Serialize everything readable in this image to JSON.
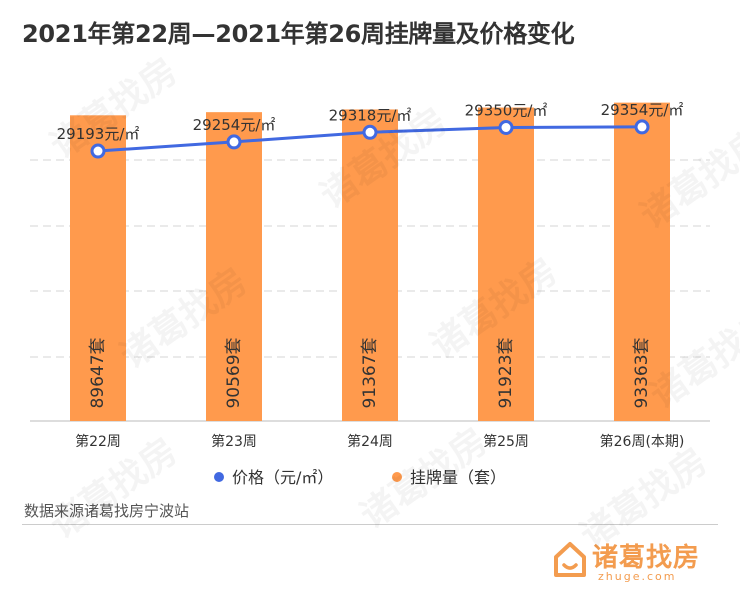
{
  "title": "2021年第22周—2021年第26周挂牌量及价格变化",
  "source": "数据来源诸葛找房宁波站",
  "logo": {
    "text": "诸葛找房",
    "sub": "zhuge.com"
  },
  "watermark": "诸葛找房",
  "colors": {
    "bar": "#ff9a4d",
    "line": "#4169e1",
    "grid": "#d0d0d0",
    "logo": "#f39c4f"
  },
  "chart_data": {
    "type": "bar",
    "title": "2021年第22周—2021年第26周挂牌量及价格变化",
    "categories": [
      "第22周",
      "第23周",
      "第24周",
      "第25周",
      "第26周(本期)"
    ],
    "series": [
      {
        "name": "价格（元/㎡）",
        "type": "line",
        "values": [
          29193,
          29254,
          29318,
          29350,
          29354
        ],
        "labels": [
          "29193元/㎡",
          "29254元/㎡",
          "29318元/㎡",
          "29350元/㎡",
          "29354元/㎡"
        ],
        "color": "#4169e1"
      },
      {
        "name": "挂牌量（套）",
        "type": "bar",
        "values": [
          89647,
          90569,
          91367,
          91923,
          93363
        ],
        "labels": [
          "89647套",
          "90569套",
          "91367套",
          "91923套",
          "93363套"
        ],
        "color": "#ff9a4d"
      }
    ],
    "grid": true,
    "legend": "bottom"
  }
}
